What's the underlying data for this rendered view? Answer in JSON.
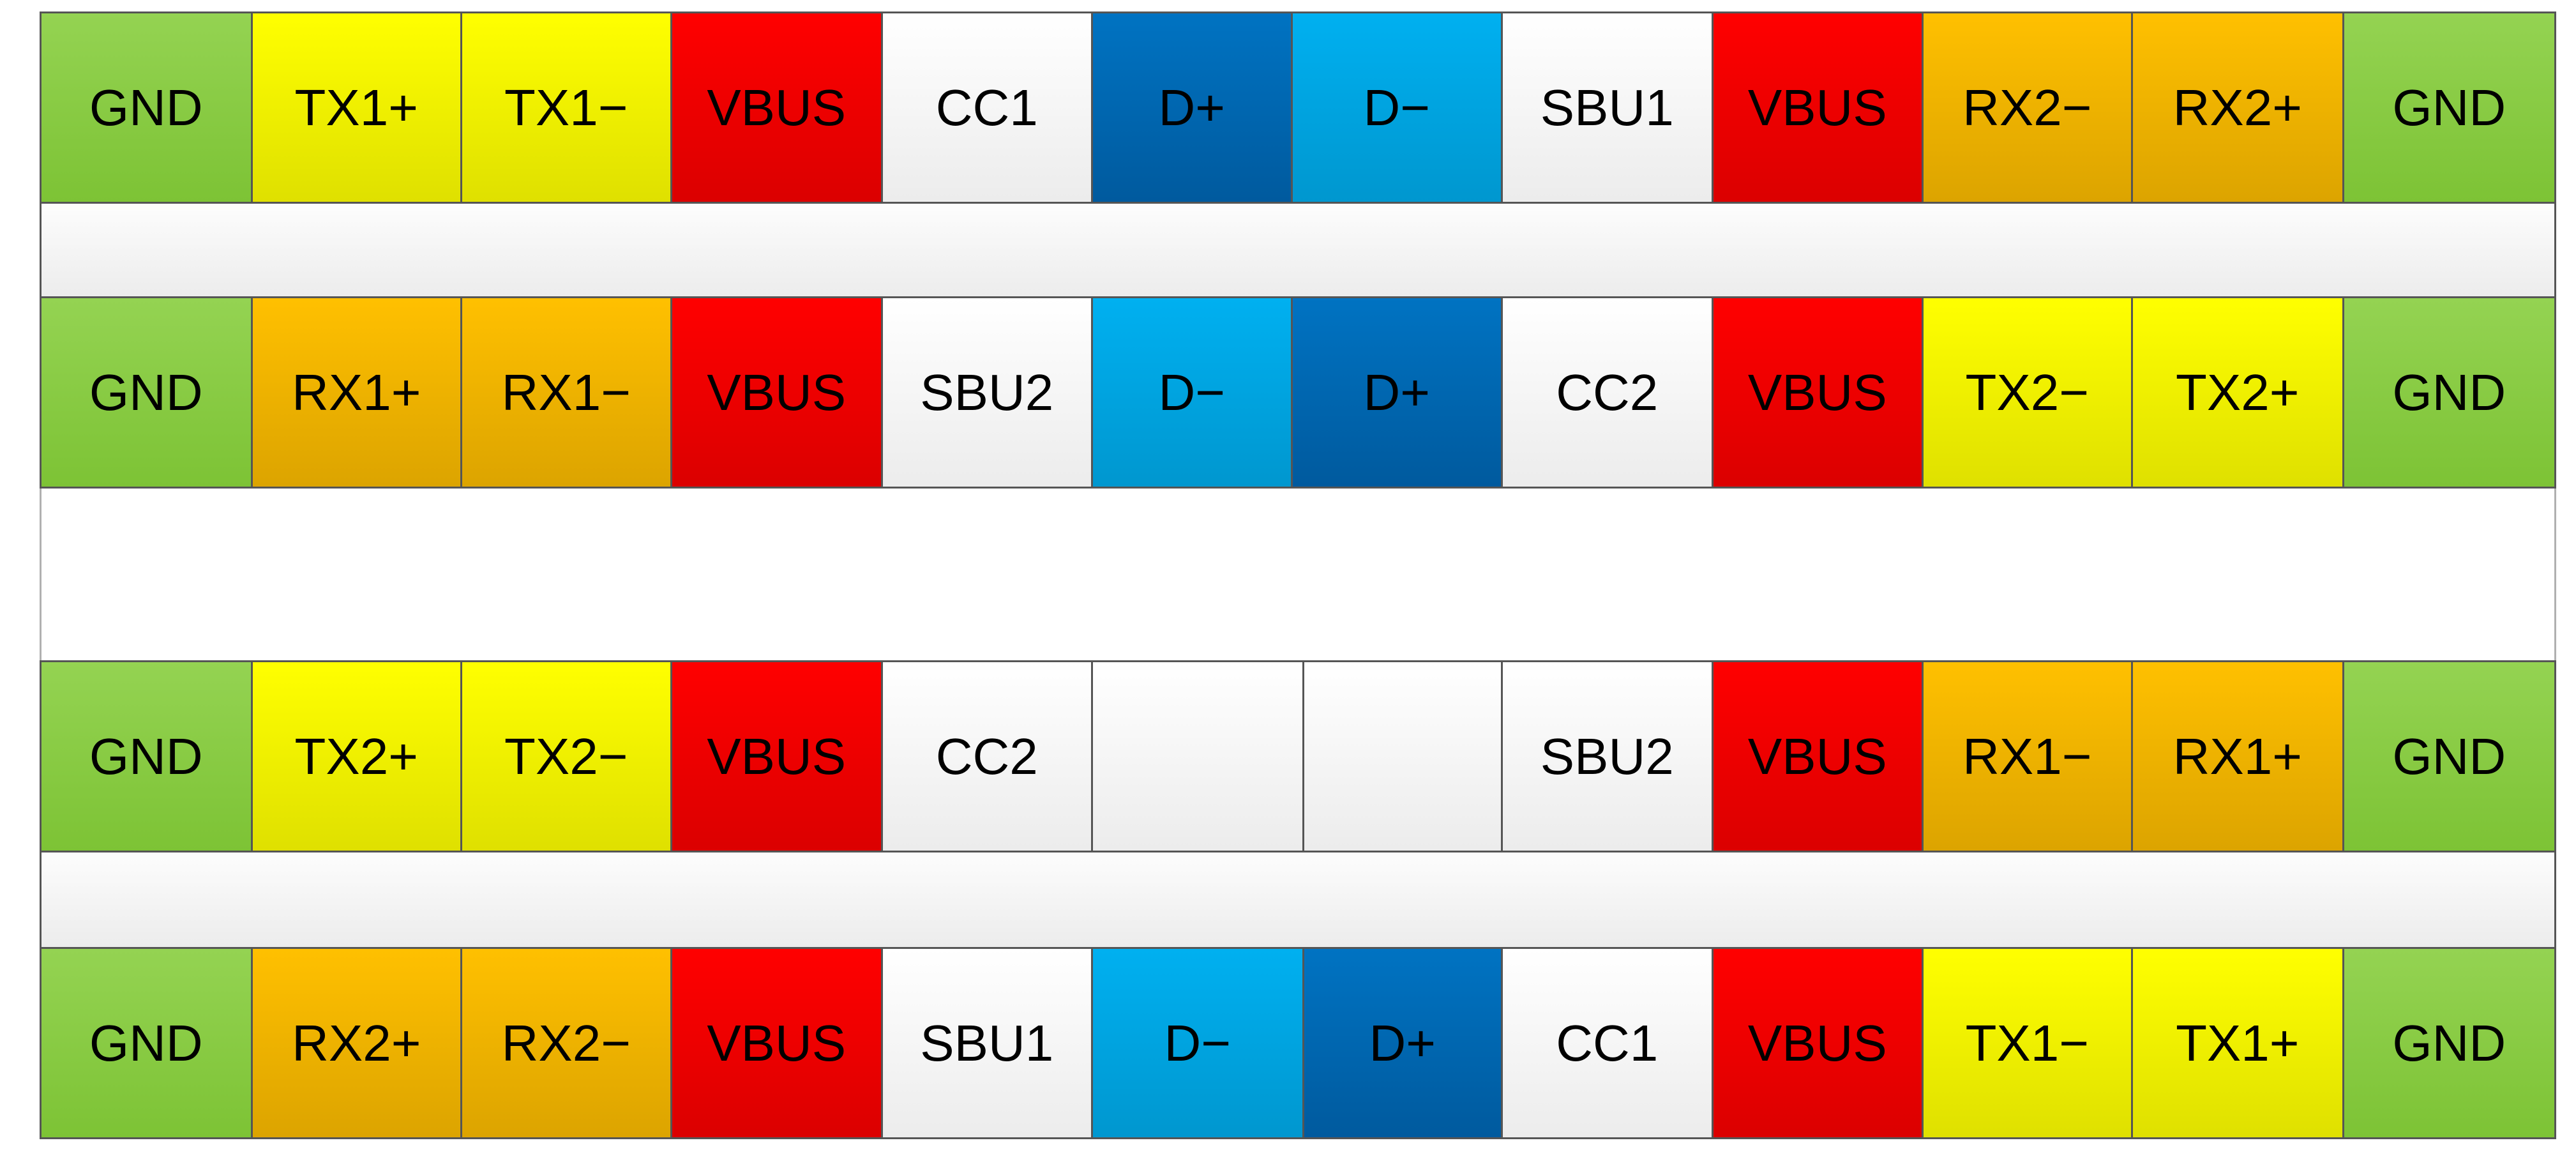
{
  "colors": {
    "green": "#92d050",
    "yellow": "#ffff00",
    "red": "#ff0000",
    "orange": "#ffc000",
    "white": "#ffffff",
    "lblue": "#00b0f0",
    "dblue": "#0070c0"
  },
  "rows": [
    {
      "pins": [
        {
          "label": "GND",
          "color": "green"
        },
        {
          "label": "TX1+",
          "color": "yellow"
        },
        {
          "label": "TX1−",
          "color": "yellow"
        },
        {
          "label": "VBUS",
          "color": "red"
        },
        {
          "label": "CC1",
          "color": "white"
        },
        {
          "label": "D+",
          "color": "dblue"
        },
        {
          "label": "D−",
          "color": "lblue"
        },
        {
          "label": "SBU1",
          "color": "white"
        },
        {
          "label": "VBUS",
          "color": "red"
        },
        {
          "label": "RX2−",
          "color": "orange"
        },
        {
          "label": "RX2+",
          "color": "orange"
        },
        {
          "label": "GND",
          "color": "green"
        }
      ]
    },
    {
      "pins": [
        {
          "label": "GND",
          "color": "green"
        },
        {
          "label": "RX1+",
          "color": "orange"
        },
        {
          "label": "RX1−",
          "color": "orange"
        },
        {
          "label": "VBUS",
          "color": "red"
        },
        {
          "label": "SBU2",
          "color": "white"
        },
        {
          "label": "D−",
          "color": "lblue"
        },
        {
          "label": "D+",
          "color": "dblue"
        },
        {
          "label": "CC2",
          "color": "white"
        },
        {
          "label": "VBUS",
          "color": "red"
        },
        {
          "label": "TX2−",
          "color": "yellow"
        },
        {
          "label": "TX2+",
          "color": "yellow"
        },
        {
          "label": "GND",
          "color": "green"
        }
      ]
    },
    {
      "pins": [
        {
          "label": "GND",
          "color": "green"
        },
        {
          "label": "TX2+",
          "color": "yellow"
        },
        {
          "label": "TX2−",
          "color": "yellow"
        },
        {
          "label": "VBUS",
          "color": "red"
        },
        {
          "label": "CC2",
          "color": "white"
        },
        {
          "label": "",
          "color": "white"
        },
        {
          "label": "",
          "color": "white"
        },
        {
          "label": "SBU2",
          "color": "white"
        },
        {
          "label": "VBUS",
          "color": "red"
        },
        {
          "label": "RX1−",
          "color": "orange"
        },
        {
          "label": "RX1+",
          "color": "orange"
        },
        {
          "label": "GND",
          "color": "green"
        }
      ]
    },
    {
      "pins": [
        {
          "label": "GND",
          "color": "green"
        },
        {
          "label": "RX2+",
          "color": "orange"
        },
        {
          "label": "RX2−",
          "color": "orange"
        },
        {
          "label": "VBUS",
          "color": "red"
        },
        {
          "label": "SBU1",
          "color": "white"
        },
        {
          "label": "D−",
          "color": "lblue"
        },
        {
          "label": "D+",
          "color": "dblue"
        },
        {
          "label": "CC1",
          "color": "white"
        },
        {
          "label": "VBUS",
          "color": "red"
        },
        {
          "label": "TX1−",
          "color": "yellow"
        },
        {
          "label": "TX1+",
          "color": "yellow"
        },
        {
          "label": "GND",
          "color": "green"
        }
      ]
    }
  ]
}
